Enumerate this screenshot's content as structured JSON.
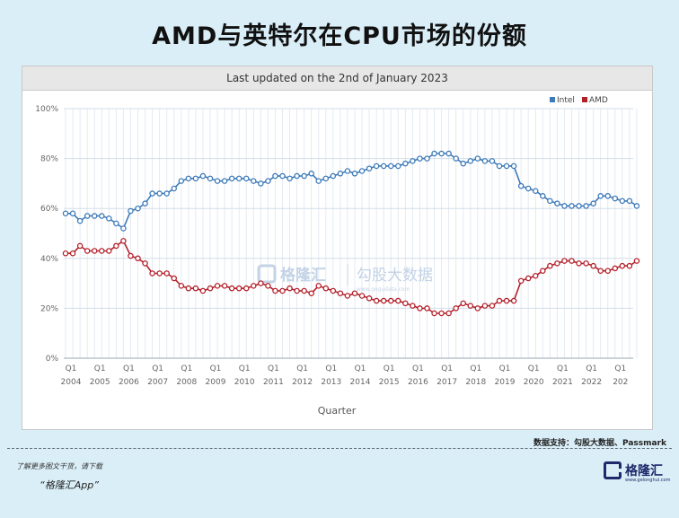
{
  "page": {
    "title": "AMD与英特尔在CPU市场的份额",
    "source": "数据支持：勾股大数据、Passmark",
    "more_text": "了解更多图文干货，请下载",
    "app_text": "“格隆汇App”",
    "logo_text": "格隆汇",
    "logo_sub": "www.gelonghui.com",
    "watermark_left": "格隆汇",
    "watermark_right": "勾股大数据",
    "watermark_url": "www.gogudata.com"
  },
  "chart_data": {
    "type": "line",
    "subtitle": "Last updated on the 2nd of January 2023",
    "xlabel": "Quarter",
    "ylabel": "",
    "ylim": [
      0,
      100
    ],
    "y_ticks": [
      "0%",
      "20%",
      "40%",
      "60%",
      "80%",
      "100%"
    ],
    "x_tick_labels": [
      {
        "q": "Q1",
        "year": "2004"
      },
      {
        "q": "Q1",
        "year": "2005"
      },
      {
        "q": "Q1",
        "year": "2006"
      },
      {
        "q": "Q1",
        "year": "2007"
      },
      {
        "q": "Q1",
        "year": "2008"
      },
      {
        "q": "Q1",
        "year": "2009"
      },
      {
        "q": "Q1",
        "year": "2010"
      },
      {
        "q": "Q1",
        "year": "2011"
      },
      {
        "q": "Q1",
        "year": "2012"
      },
      {
        "q": "Q1",
        "year": "2013"
      },
      {
        "q": "Q1",
        "year": "2014"
      },
      {
        "q": "Q1",
        "year": "2015"
      },
      {
        "q": "Q1",
        "year": "2016"
      },
      {
        "q": "Q1",
        "year": "2017"
      },
      {
        "q": "Q1",
        "year": "2018"
      },
      {
        "q": "Q1",
        "year": "2019"
      },
      {
        "q": "Q1",
        "year": "2020"
      },
      {
        "q": "Q1",
        "year": "2021"
      },
      {
        "q": "Q1",
        "year": "2022"
      },
      {
        "q": "Q1",
        "year": "202"
      }
    ],
    "legend": [
      "Intel",
      "AMD"
    ],
    "legend_position": "top-right",
    "colors": {
      "Intel": "#3d7ab8",
      "AMD": "#b3202a"
    },
    "grid": true,
    "series": [
      {
        "name": "Intel",
        "values": [
          58,
          58,
          55,
          57,
          57,
          57,
          56,
          54,
          52,
          59,
          60,
          62,
          66,
          66,
          66,
          68,
          71,
          72,
          72,
          73,
          72,
          71,
          71,
          72,
          72,
          72,
          71,
          70,
          71,
          73,
          73,
          72,
          73,
          73,
          74,
          71,
          72,
          73,
          74,
          75,
          74,
          75,
          76,
          77,
          77,
          77,
          77,
          78,
          79,
          80,
          80,
          82,
          82,
          82,
          80,
          78,
          79,
          80,
          79,
          79,
          77,
          77,
          77,
          69,
          68,
          67,
          65,
          63,
          62,
          61,
          61,
          61,
          61,
          62,
          65,
          65,
          64,
          63,
          63,
          61
        ]
      },
      {
        "name": "AMD",
        "values": [
          42,
          42,
          45,
          43,
          43,
          43,
          43,
          45,
          47,
          41,
          40,
          38,
          34,
          34,
          34,
          32,
          29,
          28,
          28,
          27,
          28,
          29,
          29,
          28,
          28,
          28,
          29,
          30,
          29,
          27,
          27,
          28,
          27,
          27,
          26,
          29,
          28,
          27,
          26,
          25,
          26,
          25,
          24,
          23,
          23,
          23,
          23,
          22,
          21,
          20,
          20,
          18,
          18,
          18,
          20,
          22,
          21,
          20,
          21,
          21,
          23,
          23,
          23,
          31,
          32,
          33,
          35,
          37,
          38,
          39,
          39,
          38,
          38,
          37,
          35,
          35,
          36,
          37,
          37,
          39
        ]
      }
    ]
  }
}
